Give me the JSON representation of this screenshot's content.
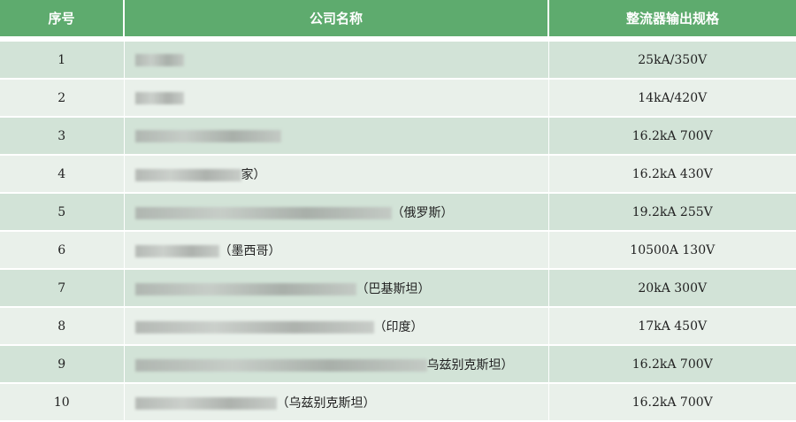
{
  "header": {
    "col_index": "序号",
    "col_company": "公司名称",
    "col_spec": "整流器输出规格"
  },
  "rows": [
    {
      "index": "1",
      "company_suffix": "",
      "spec": "25kA/350V"
    },
    {
      "index": "2",
      "company_suffix": "",
      "spec": "14kA/420V"
    },
    {
      "index": "3",
      "company_suffix": "",
      "spec": "16.2kA 700V"
    },
    {
      "index": "4",
      "company_suffix": "家）",
      "spec": "16.2kA 430V"
    },
    {
      "index": "5",
      "company_suffix": "（俄罗斯）",
      "spec": "19.2kA 255V"
    },
    {
      "index": "6",
      "company_suffix": "（墨西哥）",
      "spec": "10500A 130V"
    },
    {
      "index": "7",
      "company_suffix": "（巴基斯坦）",
      "spec": "20kA 300V"
    },
    {
      "index": "8",
      "company_suffix": "（印度）",
      "spec": "17kA 450V"
    },
    {
      "index": "9",
      "company_suffix": "乌兹别克斯坦）",
      "spec": "16.2kA 700V"
    },
    {
      "index": "10",
      "company_suffix": "（乌兹别克斯坦）",
      "spec": "16.2kA 700V"
    }
  ]
}
